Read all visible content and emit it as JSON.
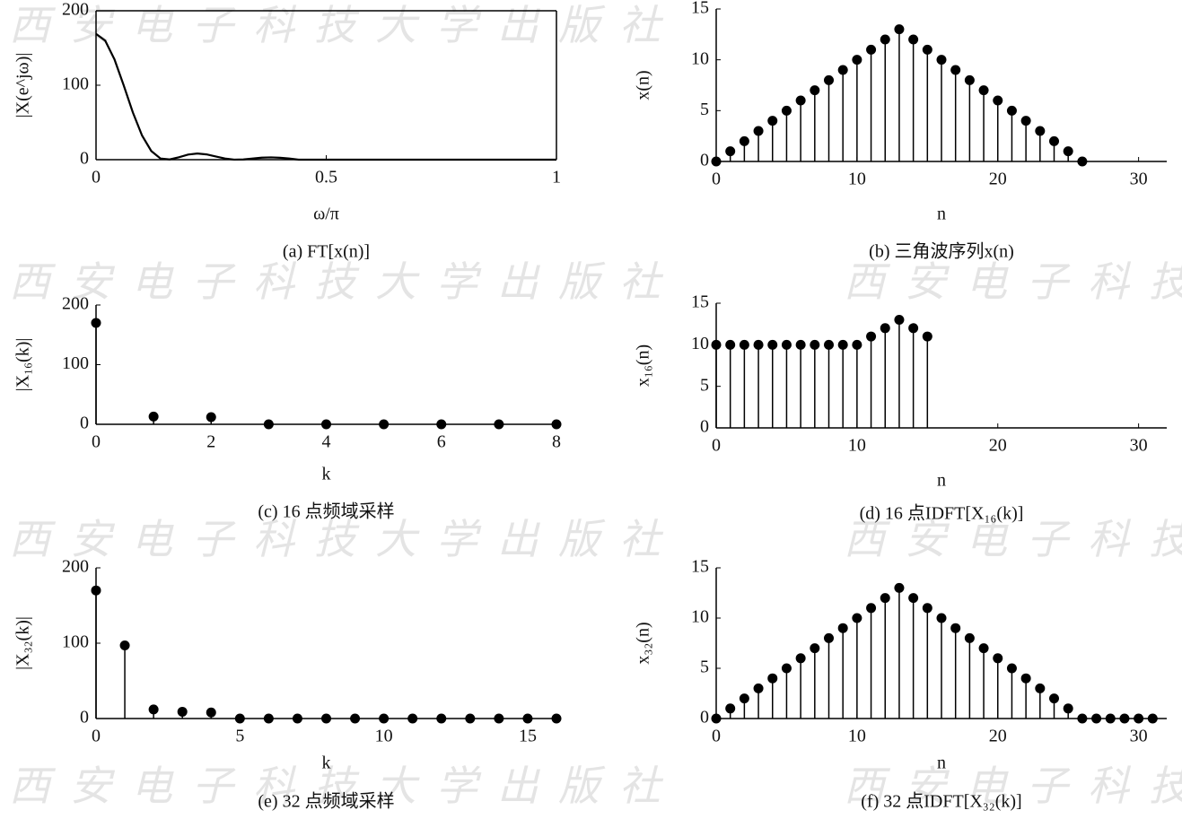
{
  "watermark": "西安电子科技大学出版社",
  "chart_data": [
    {
      "type": "line",
      "title": "(a) FT[x(n)]",
      "xlabel": "ω/π",
      "ylabel": "|X(e^jω)|",
      "frame": true,
      "color": "#000000",
      "x": [
        0,
        0.02,
        0.04,
        0.06,
        0.08,
        0.1,
        0.12,
        0.14,
        0.16,
        0.18,
        0.2,
        0.22,
        0.24,
        0.26,
        0.28,
        0.3,
        0.32,
        0.34,
        0.36,
        0.38,
        0.4,
        0.42,
        0.44,
        1
      ],
      "values": [
        169,
        159.8,
        134.8,
        100,
        63.4,
        32.4,
        11.6,
        1.6,
        0.3,
        3.3,
        6.9,
        8.3,
        7.1,
        4.3,
        1.6,
        0.1,
        0.3,
        1.5,
        2.7,
        3.1,
        2.6,
        1.5,
        0,
        0
      ],
      "xlim": [
        0,
        1
      ],
      "xticks": [
        0,
        0.5,
        1
      ],
      "ylim": [
        0,
        200
      ],
      "yticks": [
        0,
        100,
        200
      ]
    },
    {
      "type": "stem",
      "title": "(b) 三角波序列x(n)",
      "xlabel": "n",
      "ylabel": "x(n)",
      "color": "#000000",
      "x": [
        0,
        1,
        2,
        3,
        4,
        5,
        6,
        7,
        8,
        9,
        10,
        11,
        12,
        13,
        14,
        15,
        16,
        17,
        18,
        19,
        20,
        21,
        22,
        23,
        24,
        25,
        26
      ],
      "values": [
        0,
        1,
        2,
        3,
        4,
        5,
        6,
        7,
        8,
        9,
        10,
        11,
        12,
        13,
        12,
        11,
        10,
        9,
        8,
        7,
        6,
        5,
        4,
        3,
        2,
        1,
        0
      ],
      "xlim": [
        0,
        32
      ],
      "xticks": [
        0,
        10,
        20,
        30
      ],
      "ylim": [
        0,
        15
      ],
      "yticks": [
        0,
        5,
        10,
        15
      ]
    },
    {
      "type": "stem",
      "title": "(c) 16 点频域采样",
      "xlabel": "k",
      "ylabel": "|X₁₆(k)|",
      "color": "#000000",
      "x": [
        0,
        1,
        2,
        3,
        4,
        5,
        6,
        7,
        8
      ],
      "values": [
        170,
        13,
        12,
        0,
        0,
        0,
        0,
        0,
        0
      ],
      "xlim": [
        0,
        8
      ],
      "xticks": [
        0,
        2,
        4,
        6,
        8
      ],
      "ylim": [
        0,
        200
      ],
      "yticks": [
        0,
        100,
        200
      ]
    },
    {
      "type": "stem",
      "title": "(d) 16 点IDFT[X₁₆(k)]",
      "xlabel": "n",
      "ylabel": "x₁₆(n)",
      "color": "#000000",
      "x": [
        0,
        1,
        2,
        3,
        4,
        5,
        6,
        7,
        8,
        9,
        10,
        11,
        12,
        13,
        14,
        15
      ],
      "values": [
        10,
        10,
        10,
        10,
        10,
        10,
        10,
        10,
        10,
        10,
        10,
        11,
        12,
        13,
        12,
        11
      ],
      "xlim": [
        0,
        32
      ],
      "xticks": [
        0,
        10,
        20,
        30
      ],
      "ylim": [
        0,
        15
      ],
      "yticks": [
        0,
        5,
        10,
        15
      ]
    },
    {
      "type": "stem",
      "title": "(e) 32 点频域采样",
      "xlabel": "k",
      "ylabel": "|X₃₂(k)|",
      "color": "#000000",
      "x": [
        0,
        1,
        2,
        3,
        4,
        5,
        6,
        7,
        8,
        9,
        10,
        11,
        12,
        13,
        14,
        15,
        16
      ],
      "values": [
        170,
        97,
        12,
        9,
        8,
        0,
        0,
        0,
        0,
        0,
        0,
        0,
        0,
        0,
        0,
        0,
        0
      ],
      "xlim": [
        0,
        16
      ],
      "xticks": [
        0,
        5,
        10,
        15
      ],
      "ylim": [
        0,
        200
      ],
      "yticks": [
        0,
        100,
        200
      ]
    },
    {
      "type": "stem",
      "title": "(f) 32 点IDFT[X₃₂(k)]",
      "xlabel": "n",
      "ylabel": "x₃₂(n)",
      "color": "#000000",
      "x": [
        0,
        1,
        2,
        3,
        4,
        5,
        6,
        7,
        8,
        9,
        10,
        11,
        12,
        13,
        14,
        15,
        16,
        17,
        18,
        19,
        20,
        21,
        22,
        23,
        24,
        25,
        26,
        27,
        28,
        29,
        30,
        31
      ],
      "values": [
        0,
        1,
        2,
        3,
        4,
        5,
        6,
        7,
        8,
        9,
        10,
        11,
        12,
        13,
        12,
        11,
        10,
        9,
        8,
        7,
        6,
        5,
        4,
        3,
        2,
        1,
        0,
        0,
        0,
        0,
        0,
        0
      ],
      "xlim": [
        0,
        32
      ],
      "xticks": [
        0,
        10,
        20,
        30
      ],
      "ylim": [
        0,
        15
      ],
      "yticks": [
        0,
        5,
        10,
        15
      ]
    }
  ]
}
